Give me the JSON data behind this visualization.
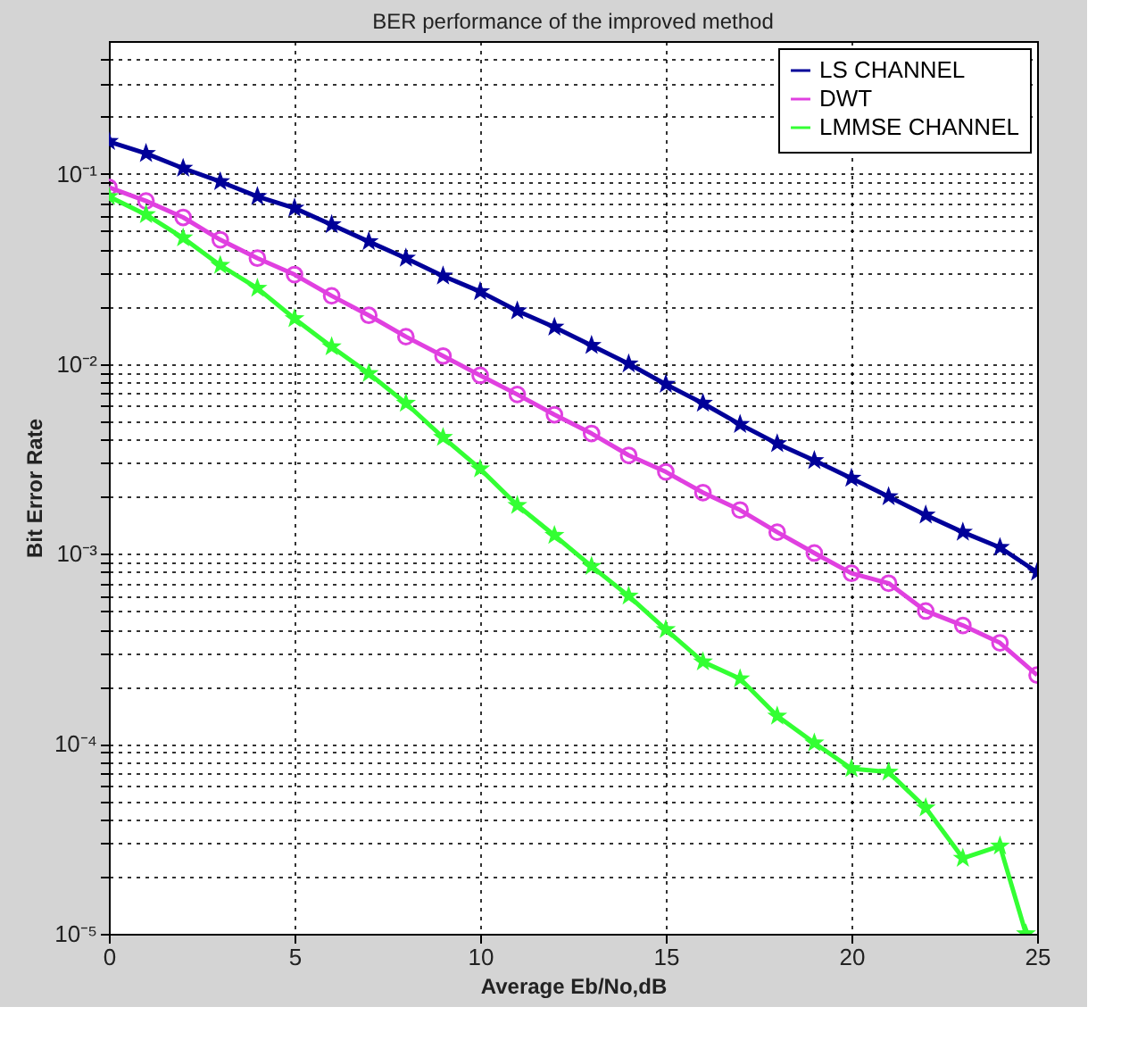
{
  "chart_data": {
    "type": "line",
    "title": "BER performance of the improved method",
    "xlabel": "Average Eb/No,dB",
    "ylabel": "Bit Error Rate",
    "x": [
      0,
      1,
      2,
      3,
      4,
      5,
      6,
      7,
      8,
      9,
      10,
      11,
      12,
      13,
      14,
      15,
      16,
      17,
      18,
      19,
      20,
      21,
      22,
      23,
      24,
      25
    ],
    "series": [
      {
        "name": "LS CHANNEL",
        "color": "#000099",
        "marker": "star",
        "values": [
          0.148,
          0.128,
          0.107,
          0.091,
          0.076,
          0.066,
          0.054,
          0.044,
          0.036,
          0.029,
          0.024,
          0.019,
          0.0156,
          0.0125,
          0.01,
          0.0078,
          0.0062,
          0.0048,
          0.0038,
          0.0031,
          0.0025,
          0.002,
          0.0016,
          0.0013,
          0.00108,
          0.0008
        ]
      },
      {
        "name": "DWT",
        "color": "#e040e0",
        "marker": "circle",
        "values": [
          0.085,
          0.072,
          0.059,
          0.045,
          0.036,
          0.0295,
          0.0228,
          0.018,
          0.0139,
          0.011,
          0.0087,
          0.0069,
          0.0054,
          0.0043,
          0.0033,
          0.0027,
          0.0021,
          0.0017,
          0.0013,
          0.00101,
          0.00079,
          0.0007,
          0.0005,
          0.00042,
          0.00034,
          0.00023
        ]
      },
      {
        "name": "LMMSE CHANNEL",
        "color": "#33ff33",
        "marker": "star",
        "x": [
          0,
          1,
          2,
          3,
          4,
          5,
          6,
          7,
          8,
          9,
          10,
          11,
          12,
          13,
          14,
          15,
          16,
          17,
          18,
          19,
          20,
          21,
          22,
          23,
          24,
          24.7
        ],
        "values": [
          0.076,
          0.061,
          0.046,
          0.033,
          0.025,
          0.0173,
          0.0123,
          0.0089,
          0.0062,
          0.0041,
          0.0028,
          0.0018,
          0.00125,
          0.00086,
          0.0006,
          0.0004,
          0.00027,
          0.00022,
          0.00014,
          0.000101,
          7.4e-05,
          7.1e-05,
          4.6e-05,
          2.5e-05,
          2.9e-05,
          1e-05
        ]
      }
    ],
    "xlim": [
      0,
      25
    ],
    "xticks": [
      0,
      5,
      10,
      15,
      20,
      25
    ],
    "ylim": [
      1e-05,
      0.5
    ],
    "log": true,
    "yticks": [
      {
        "value": 1e-05,
        "label": "10⁻⁵"
      },
      {
        "value": 2e-05,
        "label": null
      },
      {
        "value": 3e-05,
        "label": null
      },
      {
        "value": 4e-05,
        "label": null
      },
      {
        "value": 5e-05,
        "label": null
      },
      {
        "value": 6e-05,
        "label": null
      },
      {
        "value": 7e-05,
        "label": null
      },
      {
        "value": 8e-05,
        "label": null
      },
      {
        "value": 9e-05,
        "label": null
      },
      {
        "value": 0.0001,
        "label": "10⁻⁴"
      },
      {
        "value": 0.0002,
        "label": null
      },
      {
        "value": 0.0003,
        "label": null
      },
      {
        "value": 0.0004,
        "label": null
      },
      {
        "value": 0.0005,
        "label": null
      },
      {
        "value": 0.0006,
        "label": null
      },
      {
        "value": 0.0007,
        "label": null
      },
      {
        "value": 0.0008,
        "label": null
      },
      {
        "value": 0.0009,
        "label": null
      },
      {
        "value": 0.001,
        "label": "10⁻³"
      },
      {
        "value": 0.002,
        "label": null
      },
      {
        "value": 0.003,
        "label": null
      },
      {
        "value": 0.004,
        "label": null
      },
      {
        "value": 0.005,
        "label": null
      },
      {
        "value": 0.006,
        "label": null
      },
      {
        "value": 0.007,
        "label": null
      },
      {
        "value": 0.008,
        "label": null
      },
      {
        "value": 0.009,
        "label": null
      },
      {
        "value": 0.01,
        "label": "10⁻²"
      },
      {
        "value": 0.02,
        "label": null
      },
      {
        "value": 0.03,
        "label": null
      },
      {
        "value": 0.04,
        "label": null
      },
      {
        "value": 0.05,
        "label": null
      },
      {
        "value": 0.06,
        "label": null
      },
      {
        "value": 0.07,
        "label": null
      },
      {
        "value": 0.08,
        "label": null
      },
      {
        "value": 0.09,
        "label": null
      },
      {
        "value": 0.1,
        "label": "10⁻¹"
      },
      {
        "value": 0.2,
        "label": null
      },
      {
        "value": 0.3,
        "label": null
      },
      {
        "value": 0.4,
        "label": null
      }
    ],
    "grid": true,
    "legend": "top right",
    "line_style": "solid"
  }
}
